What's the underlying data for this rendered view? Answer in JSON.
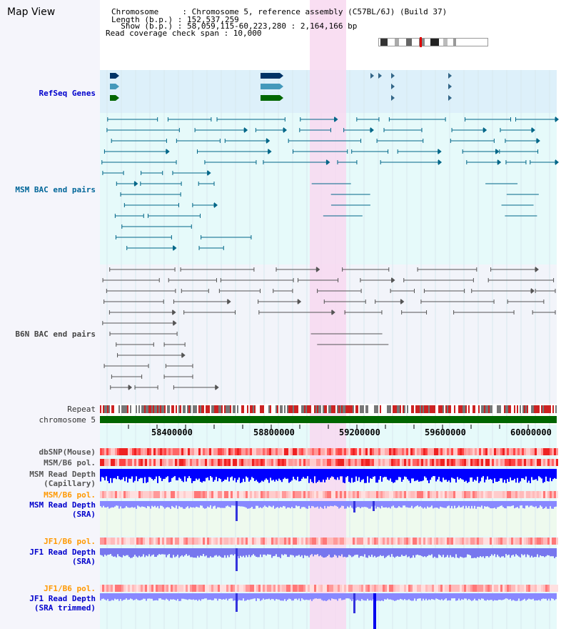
{
  "header": {
    "title": "Map View",
    "chromosome_line": "Chromosome     : Chromosome 5, reference assembly (C57BL/6J) (Build 37)",
    "length_line": "Length (b.p.) : 152,537,259",
    "show_line": "  Show (b.p.) : 58,059,115-60,223,280 : 2,164,166 bp",
    "span_line": "Read coverage check span : 10,000"
  },
  "tracks": {
    "refseq": "RefSeq Genes",
    "msm_bac": "MSM BAC end pairs",
    "b6n_bac": "B6N BAC end pairs",
    "repeat": "Repeat",
    "chromosome": "chromosome 5",
    "dbsnp": "dbSNP(Mouse)",
    "msm_b6_pol_1": "MSM/B6 pol.",
    "msm_read_depth_cap_1": "MSM Read Depth",
    "msm_read_depth_cap_2": "(Capillary)",
    "msm_b6_pol_2": "MSM/B6 pol.",
    "msm_read_depth_sra_1": "MSM Read Depth",
    "msm_read_depth_sra_2": "(SRA)",
    "jf1_b6_pol_1": "JF1/B6 pol.",
    "jf1_read_depth_sra_1": "JF1 Read Depth",
    "jf1_read_depth_sra_2": "(SRA)",
    "jf1_b6_pol_2": "JF1/B6 pol.",
    "jf1_read_depth_trim_1": "JF1 Read Depth",
    "jf1_read_depth_trim_2": "(SRA trimmed)"
  },
  "axis": {
    "ticks": [
      "58400000",
      "58800000",
      "59200000",
      "59600000",
      "60000000"
    ]
  },
  "colors": {
    "highlight": "#f8d8f0",
    "refseq_bg": "#ddf0fa",
    "msm_bg": "#e6fafa",
    "b6n_bg": "#f2f4fa",
    "chromosome": "#006600",
    "depth_blue": "#0000ff",
    "sra_blue": "#8888ff"
  }
}
